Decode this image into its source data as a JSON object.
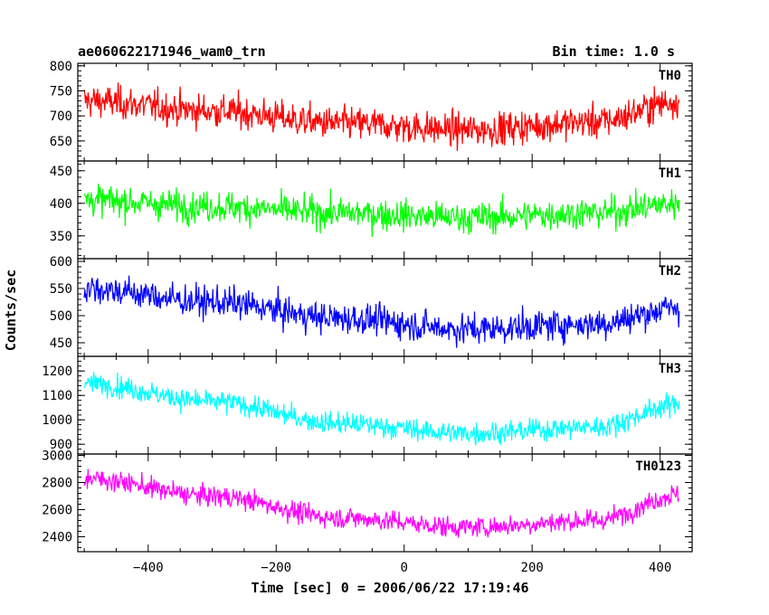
{
  "header": {
    "obs_id": "ae060622171946_wam0_trn",
    "bin_time": "Bin time: 1.0 s"
  },
  "chart_data": {
    "type": "line",
    "grid": false,
    "xlabel": "Time [sec] 0 = 2006/06/22 17:19:46",
    "ylabel": "Counts/sec",
    "xlim": [
      -510,
      450
    ],
    "x_ticks": [
      -400,
      -200,
      0,
      200,
      400
    ],
    "x_range": [
      -500,
      430
    ],
    "n_points": 931,
    "panels": [
      {
        "label": "TH0",
        "color": "#ff0000",
        "ylim": [
          610,
          805
        ],
        "yticks": [
          650,
          700,
          750,
          800
        ],
        "trend_x": [
          -500,
          -300,
          -100,
          100,
          300,
          430
        ],
        "trend_y": [
          730,
          710,
          685,
          672,
          688,
          730
        ],
        "noise": 28
      },
      {
        "label": "TH1",
        "color": "#00ff00",
        "ylim": [
          315,
          465
        ],
        "yticks": [
          350,
          400,
          450
        ],
        "trend_x": [
          -500,
          -300,
          -100,
          100,
          300,
          430
        ],
        "trend_y": [
          405,
          395,
          385,
          378,
          385,
          400
        ],
        "noise": 20
      },
      {
        "label": "TH2",
        "color": "#0000ff",
        "ylim": [
          425,
          605
        ],
        "yticks": [
          450,
          500,
          550,
          600
        ],
        "trend_x": [
          -500,
          -300,
          -100,
          100,
          300,
          430
        ],
        "trend_y": [
          550,
          525,
          495,
          475,
          485,
          515
        ],
        "noise": 24
      },
      {
        "label": "TH3",
        "color": "#00ffff",
        "ylim": [
          860,
          1260
        ],
        "yticks": [
          900,
          1000,
          1100,
          1200
        ],
        "trend_x": [
          -500,
          -300,
          -100,
          100,
          300,
          430
        ],
        "trend_y": [
          1150,
          1075,
          985,
          945,
          970,
          1065
        ],
        "noise": 38
      },
      {
        "label": "TH0123",
        "color": "#ff00ff",
        "ylim": [
          2290,
          3010
        ],
        "yticks": [
          2400,
          2600,
          2800,
          3000
        ],
        "trend_x": [
          -500,
          -300,
          -100,
          100,
          300,
          430
        ],
        "trend_y": [
          2830,
          2700,
          2540,
          2470,
          2520,
          2710
        ],
        "noise": 65
      }
    ]
  }
}
